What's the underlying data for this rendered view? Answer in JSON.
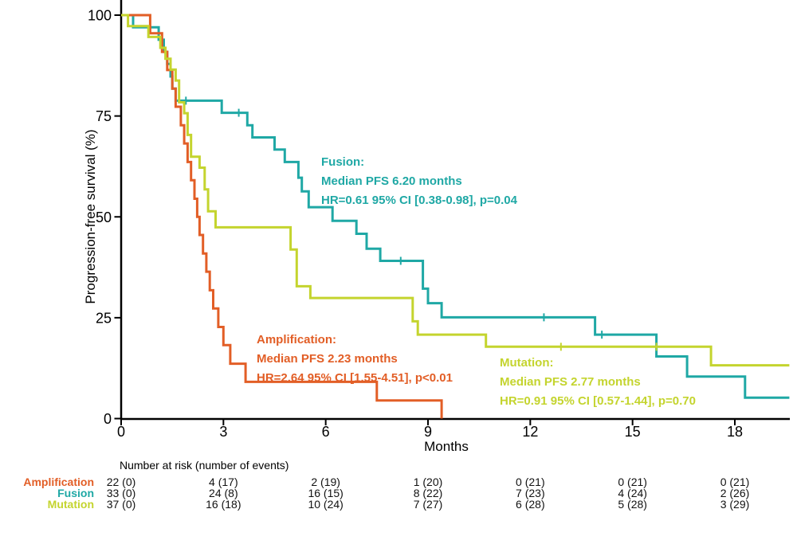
{
  "chart_data": {
    "type": "line",
    "variant": "kaplan_meier_step",
    "title": "",
    "xlabel": "Months",
    "ylabel": "Progression-free survival (%)",
    "xlim": [
      0,
      19.6
    ],
    "ylim": [
      0,
      100
    ],
    "x_ticks": [
      0,
      3,
      6,
      9,
      12,
      15,
      18
    ],
    "y_ticks": [
      0,
      25,
      50,
      75,
      100
    ],
    "grid": false,
    "legend_position": "inline-annotations",
    "series": [
      {
        "name": "Amplification",
        "color": "#E25E26",
        "end": 9.4,
        "steps": [
          [
            0,
            100
          ],
          [
            0.85,
            95.5
          ],
          [
            1.2,
            90.9
          ],
          [
            1.35,
            86.4
          ],
          [
            1.5,
            81.8
          ],
          [
            1.6,
            77.3
          ],
          [
            1.75,
            72.7
          ],
          [
            1.85,
            68.2
          ],
          [
            1.95,
            63.6
          ],
          [
            2.05,
            59.1
          ],
          [
            2.15,
            54.5
          ],
          [
            2.23,
            50
          ],
          [
            2.3,
            45.5
          ],
          [
            2.4,
            40.9
          ],
          [
            2.5,
            36.4
          ],
          [
            2.6,
            31.8
          ],
          [
            2.7,
            27.3
          ],
          [
            2.85,
            22.7
          ],
          [
            3.0,
            18.2
          ],
          [
            3.2,
            13.6
          ],
          [
            3.65,
            9.1
          ],
          [
            7.5,
            4.5
          ],
          [
            9.4,
            0
          ]
        ],
        "censors": []
      },
      {
        "name": "Fusion",
        "color": "#1FA8A5",
        "end": 19.6,
        "steps": [
          [
            0,
            100
          ],
          [
            0.35,
            97
          ],
          [
            1.1,
            93.9
          ],
          [
            1.25,
            90.9
          ],
          [
            1.35,
            87.9
          ],
          [
            1.45,
            84.8
          ],
          [
            1.5,
            81.8
          ],
          [
            1.6,
            78.8
          ],
          [
            2.95,
            75.8
          ],
          [
            3.7,
            72.7
          ],
          [
            3.85,
            69.7
          ],
          [
            4.5,
            66.7
          ],
          [
            4.8,
            63.6
          ],
          [
            5.2,
            59.7
          ],
          [
            5.3,
            56.3
          ],
          [
            5.5,
            52.4
          ],
          [
            6.2,
            49
          ],
          [
            6.9,
            45.8
          ],
          [
            7.2,
            42.1
          ],
          [
            7.6,
            39.1
          ],
          [
            8.85,
            32.2
          ],
          [
            9.0,
            28.6
          ],
          [
            9.4,
            25.1
          ],
          [
            13.9,
            20.8
          ],
          [
            15.7,
            15.4
          ],
          [
            16.6,
            10.4
          ],
          [
            18.3,
            5.2
          ]
        ],
        "censors": [
          [
            1.9,
            78.8
          ],
          [
            3.45,
            75.8
          ],
          [
            8.2,
            39.1
          ],
          [
            12.4,
            25.1
          ],
          [
            14.1,
            20.8
          ]
        ]
      },
      {
        "name": "Mutation",
        "color": "#C4D42E",
        "end": 19.6,
        "steps": [
          [
            0,
            100
          ],
          [
            0.2,
            97.3
          ],
          [
            0.8,
            94.6
          ],
          [
            1.15,
            91.9
          ],
          [
            1.3,
            89.2
          ],
          [
            1.45,
            86.5
          ],
          [
            1.6,
            83.8
          ],
          [
            1.7,
            78.4
          ],
          [
            1.85,
            75.7
          ],
          [
            1.95,
            70.3
          ],
          [
            2.05,
            64.9
          ],
          [
            2.3,
            62.2
          ],
          [
            2.45,
            56.8
          ],
          [
            2.55,
            51.4
          ],
          [
            2.77,
            47.4
          ],
          [
            4.97,
            41.9
          ],
          [
            5.15,
            32.8
          ],
          [
            5.55,
            29.9
          ],
          [
            8.55,
            24.1
          ],
          [
            8.7,
            20.8
          ],
          [
            10.7,
            17.8
          ],
          [
            17.3,
            13.2
          ]
        ],
        "censors": [
          [
            12.9,
            17.8
          ],
          [
            15.7,
            17.8
          ]
        ]
      }
    ]
  },
  "annotations": {
    "fusion": {
      "title": "Fusion:",
      "line1": "Median PFS 6.20 months",
      "line2": "HR=0.61 95% CI [0.38-0.98], p=0.04",
      "color": "#1FA8A5"
    },
    "amplification": {
      "title": "Amplification:",
      "line1": "Median PFS 2.23 months",
      "line2": "HR=2.64 95% CI [1.55-4.51], p<0.01",
      "color": "#E25E26"
    },
    "mutation": {
      "title": "Mutation:",
      "line1": "Median PFS 2.77 months",
      "line2": "HR=0.91 95% CI [0.57-1.44], p=0.70",
      "color": "#C4D42E"
    }
  },
  "risk_table": {
    "header": "Number at risk (number of events)",
    "months": [
      0,
      3,
      6,
      9,
      12,
      15,
      18
    ],
    "rows": [
      {
        "label": "Amplification",
        "color": "#E25E26",
        "values": [
          "22 (0)",
          "4 (17)",
          "2 (19)",
          "1 (20)",
          "0 (21)",
          "0 (21)",
          "0 (21)"
        ]
      },
      {
        "label": "Fusion",
        "color": "#1FA8A5",
        "values": [
          "33 (0)",
          "24 (8)",
          "16 (15)",
          "8 (22)",
          "7 (23)",
          "4 (24)",
          "2 (26)"
        ]
      },
      {
        "label": "Mutation",
        "color": "#C4D42E",
        "values": [
          "37 (0)",
          "16 (18)",
          "10 (24)",
          "7 (27)",
          "6 (28)",
          "5 (28)",
          "3 (29)"
        ]
      }
    ]
  }
}
